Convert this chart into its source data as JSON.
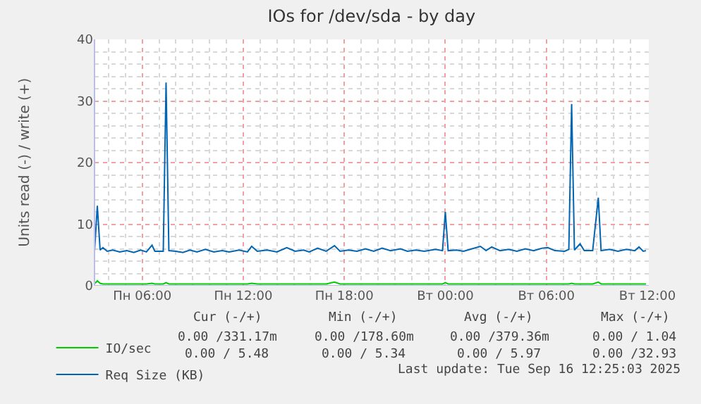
{
  "chart_data": {
    "type": "line",
    "title": "IOs for /dev/sda - by day",
    "ylabel": "Units read (-) / write (+)",
    "x": [
      "2025-09-15T03:10",
      "2025-09-15T03:20",
      "2025-09-15T03:30",
      "2025-09-15T03:40",
      "2025-09-15T03:55",
      "2025-09-15T04:15",
      "2025-09-15T04:40",
      "2025-09-15T05:05",
      "2025-09-15T05:30",
      "2025-09-15T05:55",
      "2025-09-15T06:15",
      "2025-09-15T06:35",
      "2025-09-15T06:45",
      "2025-09-15T07:15",
      "2025-09-15T07:25",
      "2025-09-15T07:35",
      "2025-09-15T08:00",
      "2025-09-15T08:25",
      "2025-09-15T08:50",
      "2025-09-15T09:15",
      "2025-09-15T09:45",
      "2025-09-15T10:15",
      "2025-09-15T10:45",
      "2025-09-15T11:10",
      "2025-09-15T11:45",
      "2025-09-15T12:15",
      "2025-09-15T12:30",
      "2025-09-15T12:50",
      "2025-09-15T13:25",
      "2025-09-15T14:00",
      "2025-09-15T14:35",
      "2025-09-15T15:05",
      "2025-09-15T15:35",
      "2025-09-15T15:55",
      "2025-09-15T16:25",
      "2025-09-15T16:55",
      "2025-09-15T17:25",
      "2025-09-15T17:45",
      "2025-09-15T18:15",
      "2025-09-15T18:45",
      "2025-09-15T19:15",
      "2025-09-15T19:45",
      "2025-09-15T20:15",
      "2025-09-15T20:45",
      "2025-09-15T21:20",
      "2025-09-15T21:45",
      "2025-09-15T22:15",
      "2025-09-15T22:45",
      "2025-09-15T23:25",
      "2025-09-15T23:50",
      "2025-09-16T00:00",
      "2025-09-16T00:10",
      "2025-09-16T00:40",
      "2025-09-16T01:05",
      "2025-09-16T01:35",
      "2025-09-16T02:05",
      "2025-09-16T02:25",
      "2025-09-16T02:45",
      "2025-09-16T03:15",
      "2025-09-16T03:45",
      "2025-09-16T04:15",
      "2025-09-16T04:45",
      "2025-09-16T05:15",
      "2025-09-16T05:45",
      "2025-09-16T06:05",
      "2025-09-16T06:30",
      "2025-09-16T07:05",
      "2025-09-16T07:20",
      "2025-09-16T07:30",
      "2025-09-16T07:40",
      "2025-09-16T08:00",
      "2025-09-16T08:15",
      "2025-09-16T08:45",
      "2025-09-16T09:05",
      "2025-09-16T09:15",
      "2025-09-16T09:45",
      "2025-09-16T10:15",
      "2025-09-16T10:45",
      "2025-09-16T11:15",
      "2025-09-16T11:30",
      "2025-09-16T11:45",
      "2025-09-16T11:55"
    ],
    "series": [
      {
        "name": "IO/sec",
        "color": "#00cc00",
        "values": [
          0.3,
          0.8,
          0.4,
          0.3,
          0.3,
          0.3,
          0.3,
          0.3,
          0.3,
          0.3,
          0.3,
          0.4,
          0.3,
          0.3,
          0.5,
          0.3,
          0.3,
          0.3,
          0.3,
          0.3,
          0.3,
          0.3,
          0.3,
          0.3,
          0.3,
          0.3,
          0.4,
          0.3,
          0.3,
          0.3,
          0.3,
          0.3,
          0.3,
          0.3,
          0.3,
          0.3,
          0.6,
          0.3,
          0.3,
          0.3,
          0.3,
          0.3,
          0.3,
          0.3,
          0.3,
          0.3,
          0.3,
          0.3,
          0.3,
          0.3,
          0.5,
          0.3,
          0.3,
          0.3,
          0.3,
          0.3,
          0.3,
          0.3,
          0.3,
          0.3,
          0.3,
          0.3,
          0.3,
          0.3,
          0.3,
          0.3,
          0.3,
          0.3,
          0.4,
          0.3,
          0.3,
          0.3,
          0.3,
          0.6,
          0.3,
          0.3,
          0.3,
          0.3,
          0.3,
          0.3,
          0.3,
          0.3
        ]
      },
      {
        "name": "Req Size (KB)",
        "color": "#0066b3",
        "values": [
          5.5,
          13,
          5.8,
          6.2,
          5.6,
          5.8,
          5.5,
          5.7,
          5.4,
          5.8,
          5.5,
          6.6,
          5.6,
          5.6,
          33,
          5.7,
          5.6,
          5.4,
          5.8,
          5.5,
          5.9,
          5.5,
          5.7,
          5.5,
          5.8,
          5.5,
          6.4,
          5.6,
          5.8,
          5.5,
          6.2,
          5.6,
          5.8,
          5.5,
          6.1,
          5.6,
          6.5,
          5.6,
          5.8,
          5.6,
          6,
          5.6,
          6.1,
          5.7,
          6,
          5.6,
          5.8,
          5.6,
          5.9,
          5.7,
          12,
          5.7,
          5.8,
          5.6,
          6,
          6.4,
          5.7,
          6.3,
          5.7,
          5.9,
          5.6,
          6,
          5.7,
          6.1,
          6.2,
          5.7,
          5.6,
          5.9,
          29.5,
          5.8,
          6.8,
          5.7,
          5.7,
          14.3,
          5.7,
          5.9,
          5.6,
          5.9,
          5.7,
          6.3,
          5.6,
          5.7
        ]
      }
    ],
    "xlim": [
      "2025-09-15T03:10",
      "2025-09-16T12:05"
    ],
    "xticks": [
      {
        "value": "2025-09-15T06:00",
        "label": "Пн 06:00"
      },
      {
        "value": "2025-09-15T12:00",
        "label": "Пн 12:00"
      },
      {
        "value": "2025-09-15T18:00",
        "label": "Пн 18:00"
      },
      {
        "value": "2025-09-16T00:00",
        "label": "Вт 00:00"
      },
      {
        "value": "2025-09-16T06:00",
        "label": "Вт 06:00"
      },
      {
        "value": "2025-09-16T12:00",
        "label": "Вт 12:00"
      }
    ],
    "ylim": [
      0,
      40
    ],
    "yticks": [
      0,
      10,
      20,
      30,
      40
    ],
    "grid": true,
    "legend": "bottom left",
    "annotations": [
      "Cur (-/+)",
      "Min (-/+)",
      "Avg (-/+)",
      "Max (-/+)",
      "0.00 /331.17m",
      "0.00 /178.60m",
      "0.00 /379.36m",
      "0.00 / 1.04",
      "0.00 / 5.48",
      "0.00 / 5.34",
      "0.00 / 5.97",
      "0.00 /32.93",
      "Last update: Tue Sep 16 12:25:03 2025"
    ]
  }
}
